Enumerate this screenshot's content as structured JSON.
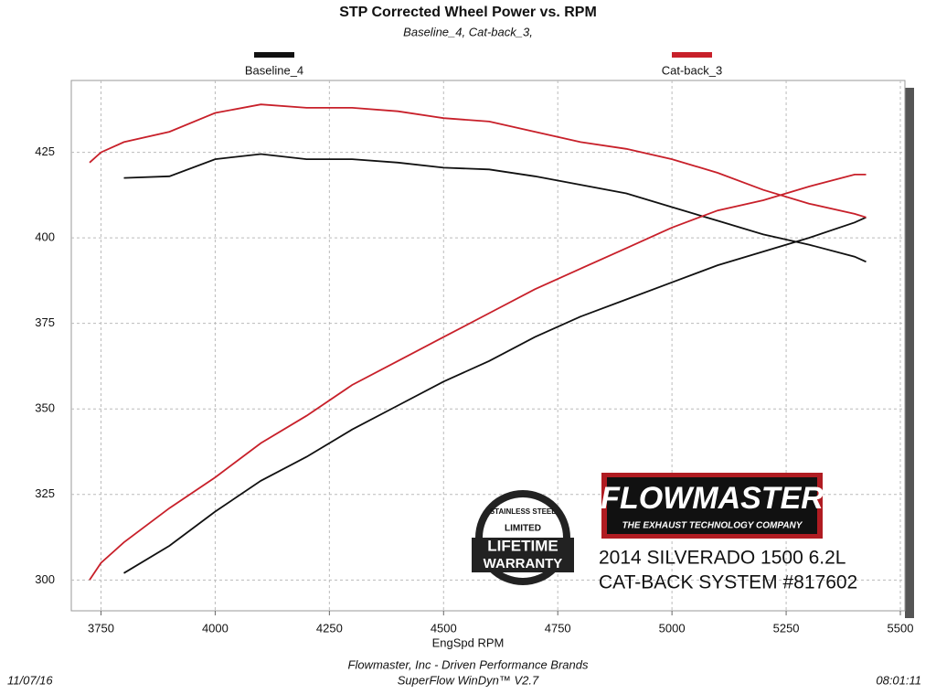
{
  "chart_data": {
    "type": "line",
    "title": "STP Corrected Wheel Power vs. RPM",
    "subtitle": "Baseline_4, Cat-back_3,",
    "x_label": "EngSpd RPM",
    "xlim": [
      3685,
      5510
    ],
    "xticks": [
      3750,
      4000,
      4250,
      4500,
      4750,
      5000,
      5250,
      5500
    ],
    "ylim": [
      291,
      446
    ],
    "yticks": [
      300,
      325,
      350,
      375,
      400,
      425
    ],
    "grid": true,
    "series": [
      {
        "name": "Baseline_4",
        "color": "#111111",
        "x": [
          3800,
          3900,
          4000,
          4100,
          4200,
          4300,
          4400,
          4500,
          4600,
          4700,
          4800,
          4900,
          5000,
          5100,
          5200,
          5300,
          5400,
          5425
        ],
        "values": [
          302,
          310,
          320,
          329,
          336,
          344,
          351,
          358,
          364,
          371,
          377,
          382,
          387,
          392,
          396,
          400,
          404.5,
          406
        ],
        "values2": [
          417.5,
          418,
          423,
          424.5,
          423,
          423,
          422,
          420.5,
          420,
          418,
          415.5,
          413,
          409,
          405,
          401,
          398,
          394.5,
          393
        ]
      },
      {
        "name": "Cat-back_3",
        "color": "#c8202a",
        "x": [
          3725,
          3750,
          3800,
          3900,
          4000,
          4100,
          4200,
          4300,
          4400,
          4500,
          4600,
          4700,
          4800,
          4900,
          5000,
          5100,
          5200,
          5300,
          5400,
          5425
        ],
        "values": [
          300,
          305,
          311,
          321,
          330,
          340,
          348,
          357,
          364,
          371,
          378,
          385,
          391,
          397,
          403,
          408,
          411,
          415,
          418.5,
          418.5
        ],
        "values2": [
          422,
          425,
          428,
          431,
          436.5,
          439,
          438,
          438,
          437,
          435,
          434,
          431,
          428,
          426,
          423,
          419,
          414,
          410,
          407,
          406
        ]
      }
    ]
  },
  "footer": {
    "company": "Flowmaster, Inc - Driven Performance Brands",
    "software": "SuperFlow WinDyn™ V2.7",
    "date": "11/07/16",
    "time": "08:01:11"
  },
  "logo": {
    "brand": "FLOWMASTER",
    "tagline": "THE EXHAUST TECHNOLOGY COMPANY",
    "line1": "2014 SILVERADO 1500 6.2L",
    "line2": "CAT-BACK SYSTEM #817602"
  },
  "badge": {
    "top": "STAINLESS STEEL",
    "middle": "LIMITED",
    "line1": "LIFETIME",
    "line2": "WARRANTY"
  }
}
